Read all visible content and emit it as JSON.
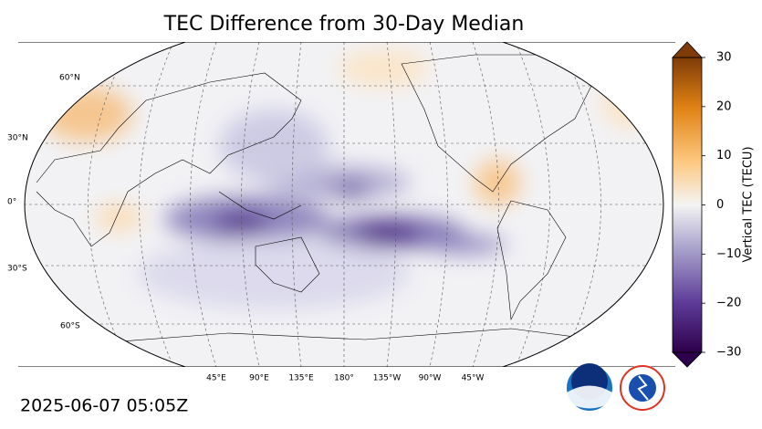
{
  "title": "TEC Difference from 30-Day Median",
  "timestamp": "2025-06-07 05:05Z",
  "map": {
    "lat_labels": [
      "60°N",
      "30°N",
      "0°",
      "30°S",
      "60°S"
    ],
    "lon_labels": [
      "45°E",
      "90°E",
      "135°E",
      "180°",
      "135°W",
      "90°W",
      "45°W"
    ]
  },
  "colorbar": {
    "label": "Vertical TEC (TECU)",
    "lim": [
      -30,
      30
    ],
    "ticks": [
      {
        "value": -30,
        "label": "−30"
      },
      {
        "value": -20,
        "label": "−20"
      },
      {
        "value": -10,
        "label": "−10"
      },
      0,
      10,
      20,
      30
    ]
  }
}
